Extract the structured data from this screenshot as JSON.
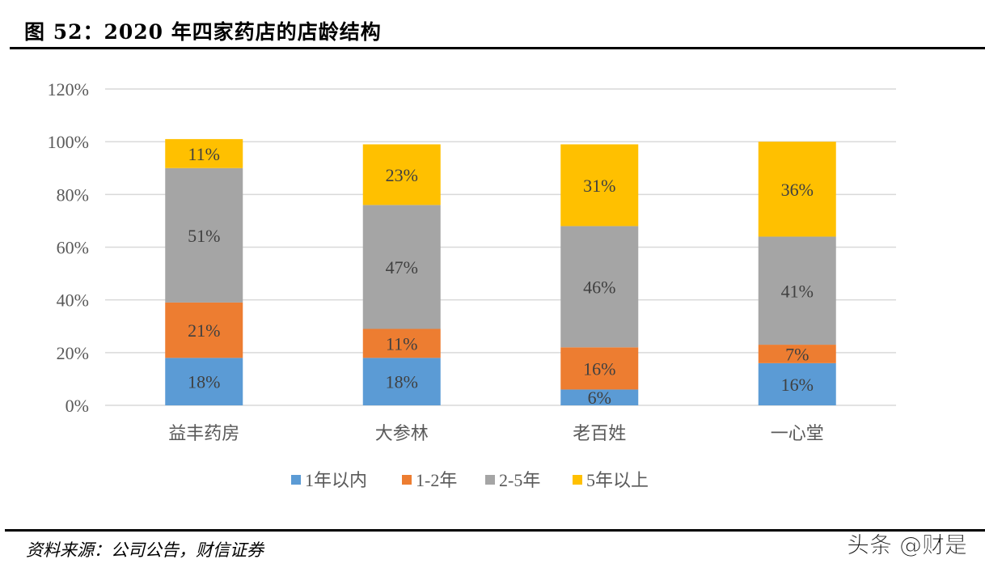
{
  "title": "图 52：2020 年四家药店的店龄结构",
  "source": "资料来源：公司公告，财信证券",
  "watermark": "头条 @财是",
  "chart_data": {
    "type": "bar",
    "stacked": true,
    "categories": [
      "益丰药房",
      "大参林",
      "老百姓",
      "一心堂"
    ],
    "ylim": [
      0,
      120
    ],
    "yticks": [
      "0%",
      "20%",
      "40%",
      "60%",
      "80%",
      "100%",
      "120%"
    ],
    "ytick_values": [
      0,
      20,
      40,
      60,
      80,
      100,
      120
    ],
    "grid": true,
    "legend_position": "bottom",
    "series": [
      {
        "name": "1年以内",
        "color": "#5B9BD5",
        "values": [
          18,
          18,
          6,
          16
        ]
      },
      {
        "name": "1-2年",
        "color": "#ED7D31",
        "values": [
          21,
          11,
          16,
          7
        ]
      },
      {
        "name": "2-5年",
        "color": "#A5A5A5",
        "values": [
          51,
          47,
          46,
          41
        ]
      },
      {
        "name": "5年以上",
        "color": "#FFC000",
        "values": [
          11,
          23,
          31,
          36
        ]
      }
    ],
    "value_suffix": "%"
  }
}
